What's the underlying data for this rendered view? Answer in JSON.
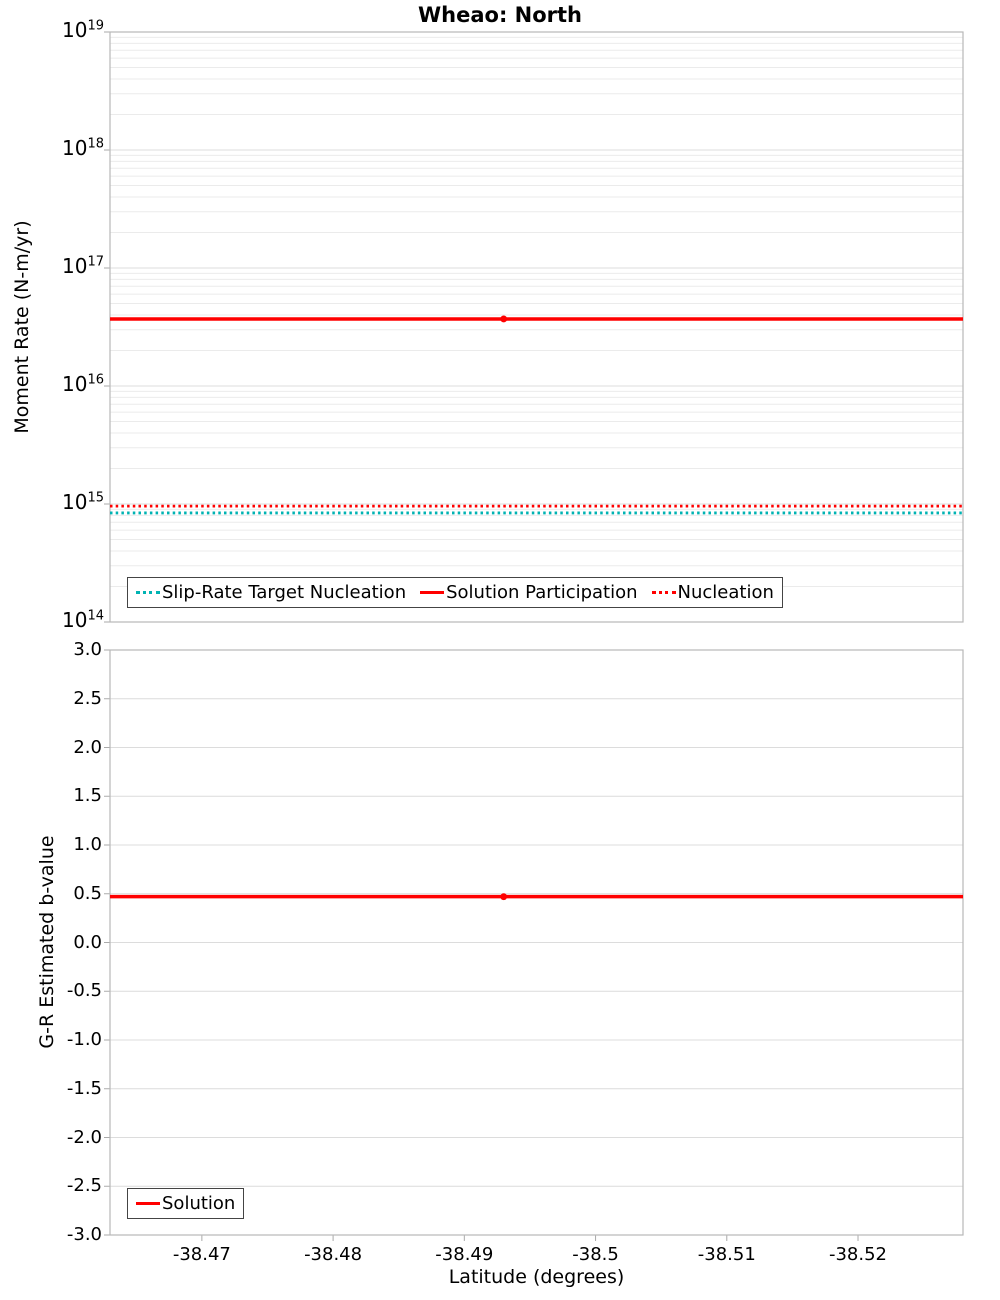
{
  "figure": {
    "background": "#ffffff",
    "grid_color_major": "#dcdcdc",
    "grid_color_minor": "#ebebeb",
    "axis_border_color": "#b8b8b8",
    "tick_color": "#aaaaaa",
    "text_color": "#000000"
  },
  "chart_data": [
    {
      "type": "line",
      "title": "Wheao: North",
      "ylabel": "Moment Rate (N-m/yr)",
      "yscale": "log",
      "ylim": [
        100000000000000.0,
        1e+19
      ],
      "y_ticks_exponents": [
        14,
        15,
        16,
        17,
        18,
        19
      ],
      "xlim": [
        -38.463,
        -38.528
      ],
      "grid": true,
      "legend_position": "bottom-left-inside",
      "series": [
        {
          "name": "Slip-Rate Target Nucleation",
          "color": "#00b3b3",
          "line_style": "dotted",
          "x": [
            -38.463,
            -38.528
          ],
          "y": [
            840000000000000.0,
            840000000000000.0
          ]
        },
        {
          "name": "Solution Participation",
          "color": "#ff0000",
          "line_style": "solid",
          "x": [
            -38.463,
            -38.528
          ],
          "y": [
            3.7e+16,
            3.7e+16
          ],
          "marker_x": -38.493
        },
        {
          "name": "Nucleation",
          "color": "#ff0000",
          "line_style": "dotted",
          "x": [
            -38.463,
            -38.528
          ],
          "y": [
            960000000000000.0,
            960000000000000.0
          ]
        }
      ]
    },
    {
      "type": "line",
      "title": "",
      "ylabel": "G-R Estimated b-value",
      "xlabel": "Latitude (degrees)",
      "yscale": "linear",
      "ylim": [
        -3,
        3
      ],
      "y_tick_labels": [
        "3.0",
        "2.5",
        "2.0",
        "1.5",
        "1.0",
        "0.5",
        "0.0",
        "-0.5",
        "-1.0",
        "-1.5",
        "-2.0",
        "-2.5",
        "-3.0"
      ],
      "xlim": [
        -38.463,
        -38.528
      ],
      "x_tick_labels": [
        "-38.47",
        "-38.48",
        "-38.49",
        "-38.5",
        "-38.51",
        "-38.52"
      ],
      "grid": true,
      "legend_position": "bottom-left-inside",
      "series": [
        {
          "name": "Solution",
          "color": "#ff0000",
          "line_style": "solid",
          "x": [
            -38.463,
            -38.528
          ],
          "y": [
            0.47,
            0.47
          ],
          "marker_x": -38.493
        }
      ]
    }
  ]
}
